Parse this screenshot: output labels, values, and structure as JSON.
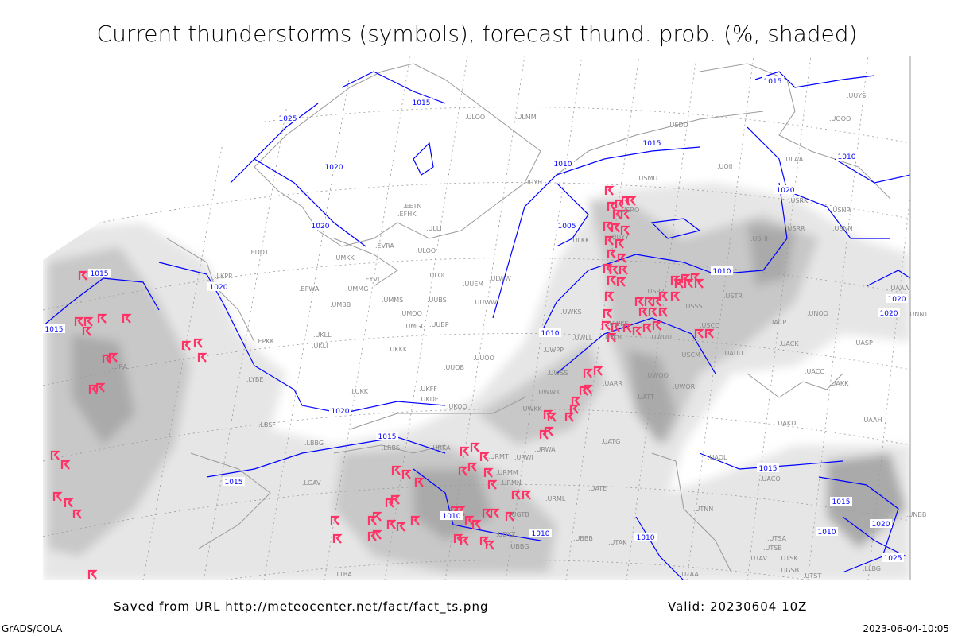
{
  "title": "Current thunderstorms (symbols), forecast thund. prob. (%, shaded)",
  "footer": {
    "saved_from": "Saved from URL http://meteocenter.net/fact/fact_ts.png",
    "valid": "Valid: 20230604 10Z",
    "software": "GrADS/COLA",
    "timestamp": "2023-06-04-10:05"
  },
  "colors": {
    "isobar": "#0000ff",
    "thunderstorm_symbol": "#ff3366",
    "shade_light": "#e6e6e6",
    "shade_mid": "#c8c8c8",
    "shade_dark": "#aaaaaa",
    "coast": "#9a9a9a",
    "grid": "#999999"
  },
  "icons": {
    "thunderstorm": "thunderstorm-symbol-icon"
  },
  "isobar_labels": [
    "1015",
    "1025",
    "1020",
    "1015",
    "1020",
    "1010",
    "1015",
    "1010",
    "1020",
    "1015",
    "1020",
    "1005",
    "1010",
    "1010",
    "1020",
    "1015",
    "1015",
    "1010",
    "1010",
    "1010",
    "1015",
    "1020",
    "1015",
    "1025",
    "1020",
    "1010",
    "1015",
    "1020"
  ],
  "station_labels": [
    "ULMM",
    "ULOO",
    "USDD",
    "UOII",
    "UOOO",
    "UUYS",
    "USMU",
    "ULAA",
    "UUYH",
    "USRO",
    "USRK",
    "USNR",
    "USRR",
    "USNN",
    "ULKK",
    "UUYY",
    "USHH",
    "EETN",
    "EFHK",
    "ULLI",
    "EVRA",
    "ULOO",
    "ULOL",
    "UMKK",
    "EDDT",
    "EYVI",
    "UUEM",
    "UMMG",
    "EPWA",
    "UMBB",
    "UMMS",
    "UMOO",
    "UUBS",
    "UUWW",
    "UKLL",
    "UMGG",
    "UUBP",
    "UKLI",
    "ULWW",
    "UUOO",
    "UKKK",
    "UUOB",
    "USPP",
    "USSS",
    "USTR",
    "UNOO",
    "UACP",
    "UACK",
    "UASP",
    "USCC",
    "USCM",
    "UWKS",
    "UWKE",
    "UWKB",
    "UWUU",
    "UWLL",
    "UWPP",
    "UWOO",
    "UWOR",
    "UATT",
    "UAUU",
    "UACC",
    "UAKK",
    "UAKD",
    "UAAH",
    "UWSS",
    "UWWK",
    "UARR",
    "UATG",
    "UWKK",
    "UKOO",
    "LUKK",
    "LYBE",
    "LBSF",
    "LBBG",
    "LRBS",
    "URKA",
    "URMT",
    "URMM",
    "URMN",
    "URWI",
    "URWA",
    "URML",
    "UATE",
    "UBBB",
    "UTAK",
    "UTAA",
    "UTNN",
    "UTSA",
    "UTSB",
    "UTAV",
    "UTSK",
    "UTST",
    "UAOL",
    "UACO",
    "LIRA",
    "LKPR",
    "EPKK",
    "UKDE",
    "UKFF",
    "LGAV",
    "LTBA",
    "UGTB",
    "UDYZ",
    "UBBG",
    "UGSB",
    "UAAA",
    "UNNT",
    "UNBB",
    "LLBG"
  ]
}
